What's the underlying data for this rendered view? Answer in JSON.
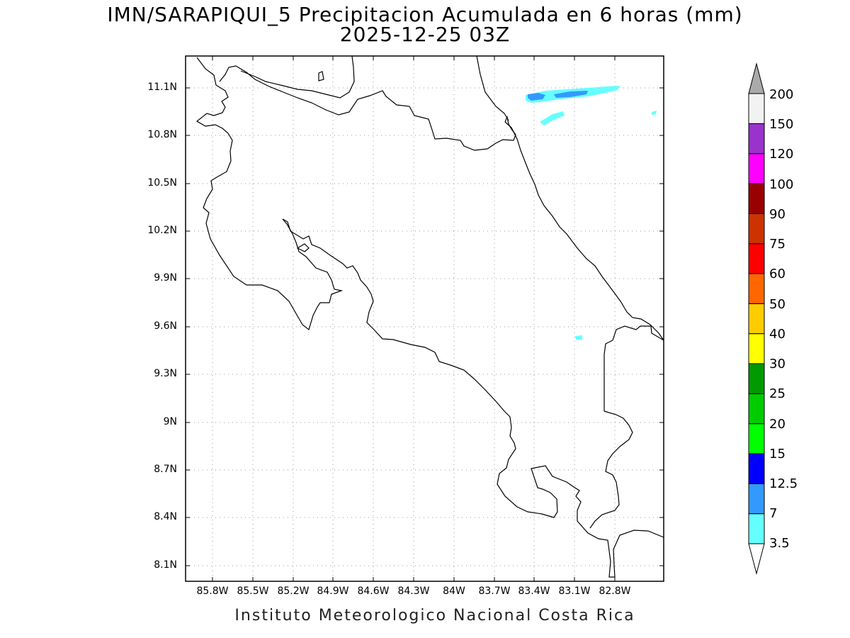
{
  "title_line1": "IMN/SARAPIQUI_5 Precipitacion Acumulada en 6 horas (mm)",
  "title_line2": "2025-12-25 03Z",
  "credit": "Instituto Meteorologico Nacional Costa Rica",
  "lat_labels": [
    "11.1N",
    "10.8N",
    "10.5N",
    "10.2N",
    "9.9N",
    "9.6N",
    "9.3N",
    "9N",
    "8.7N",
    "8.4N",
    "8.1N"
  ],
  "lon_labels": [
    "85.8W",
    "85.5W",
    "85.2W",
    "84.9W",
    "84.6W",
    "84.3W",
    "84W",
    "83.7W",
    "83.4W",
    "83.1W",
    "82.8W"
  ],
  "colorbar": {
    "labels": [
      "3.5",
      "7",
      "12.5",
      "15",
      "20",
      "25",
      "30",
      "40",
      "50",
      "60",
      "75",
      "90",
      "100",
      "120",
      "150",
      "200"
    ],
    "colors": [
      "#ffffff",
      "#66ffff",
      "#3399ff",
      "#0000ff",
      "#00ff00",
      "#00cc00",
      "#009900",
      "#ffff00",
      "#ffcc00",
      "#ff6600",
      "#ff0000",
      "#cc3300",
      "#990000",
      "#ff00ff",
      "#9933cc",
      "#f2f2f2",
      "#aaaaaa"
    ]
  }
}
